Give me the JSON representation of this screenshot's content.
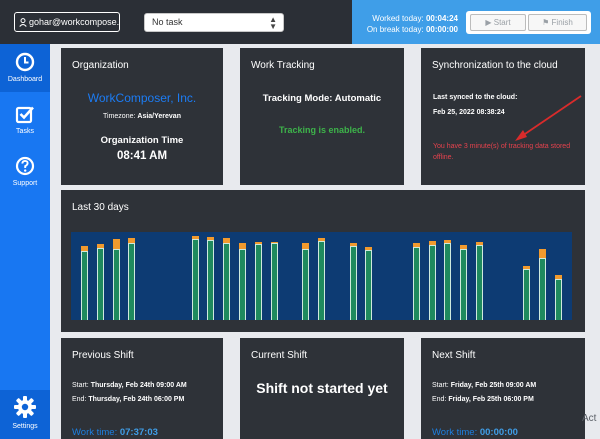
{
  "topbar": {
    "user": "gohar@workcompose...",
    "task_select": "No task",
    "worked_today_label": "Worked today:",
    "worked_today_value": "00:04:24",
    "on_break_label": "On break today:",
    "on_break_value": "00:00:00",
    "start_label": "Start",
    "finish_label": "Finish"
  },
  "sidebar": {
    "items": [
      {
        "label": "Dashboard",
        "icon": "clock-icon"
      },
      {
        "label": "Tasks",
        "icon": "checkbox-icon"
      },
      {
        "label": "Support",
        "icon": "question-icon"
      },
      {
        "label": "Settings",
        "icon": "gear-icon"
      }
    ]
  },
  "organization": {
    "title": "Organization",
    "name": "WorkComposer, Inc.",
    "timezone_label": "Timezone:",
    "timezone_value": "Asia/Yerevan",
    "time_label": "Organization Time",
    "time_value": "08:41 AM"
  },
  "tracking": {
    "title": "Work Tracking",
    "mode": "Tracking Mode: Automatic",
    "status": "Tracking is enabled."
  },
  "sync": {
    "title": "Synchronization to the cloud",
    "last_synced_label": "Last synced to the cloud:",
    "last_synced_value": "Feb 25, 2022 08:38:24",
    "warning": "You have 3 minute(s) of tracking data stored offline."
  },
  "last30": {
    "title": "Last 30 days"
  },
  "chart_data": {
    "type": "bar",
    "title": "Last 30 days",
    "series": [
      {
        "name": "work",
        "values": [
          78,
          82,
          81,
          88,
          0,
          0,
          0,
          92,
          91,
          88,
          81,
          86,
          87,
          0,
          81,
          90,
          0,
          84,
          79,
          0,
          0,
          83,
          85,
          88,
          81,
          85,
          0,
          0,
          58,
          71,
          47
        ]
      },
      {
        "name": "break",
        "values": [
          6,
          4,
          11,
          5,
          0,
          0,
          0,
          3,
          3,
          5,
          6,
          3,
          2,
          0,
          6,
          3,
          0,
          4,
          4,
          0,
          0,
          5,
          5,
          3,
          4,
          4,
          0,
          0,
          3,
          10,
          4
        ]
      }
    ],
    "colors": {
      "work": "#1f8a5e",
      "break": "#f19a2e",
      "background": "#0d3b73"
    }
  },
  "previous_shift": {
    "title": "Previous Shift",
    "start_label": "Start:",
    "start_value": "Thursday, Feb 24th 09:00 AM",
    "end_label": "End:",
    "end_value": "Thursday, Feb 24th 06:00 PM",
    "work_time_label": "Work time:",
    "work_time_value": "07:37:03"
  },
  "current_shift": {
    "title": "Current Shift",
    "status": "Shift not started yet"
  },
  "next_shift": {
    "title": "Next Shift",
    "start_label": "Start:",
    "start_value": "Friday, Feb 25th 09:00 AM",
    "end_label": "End:",
    "end_value": "Friday, Feb 25th 06:00 PM",
    "work_time_label": "Work time:",
    "work_time_value": "00:00:00"
  },
  "watermark": "Act"
}
